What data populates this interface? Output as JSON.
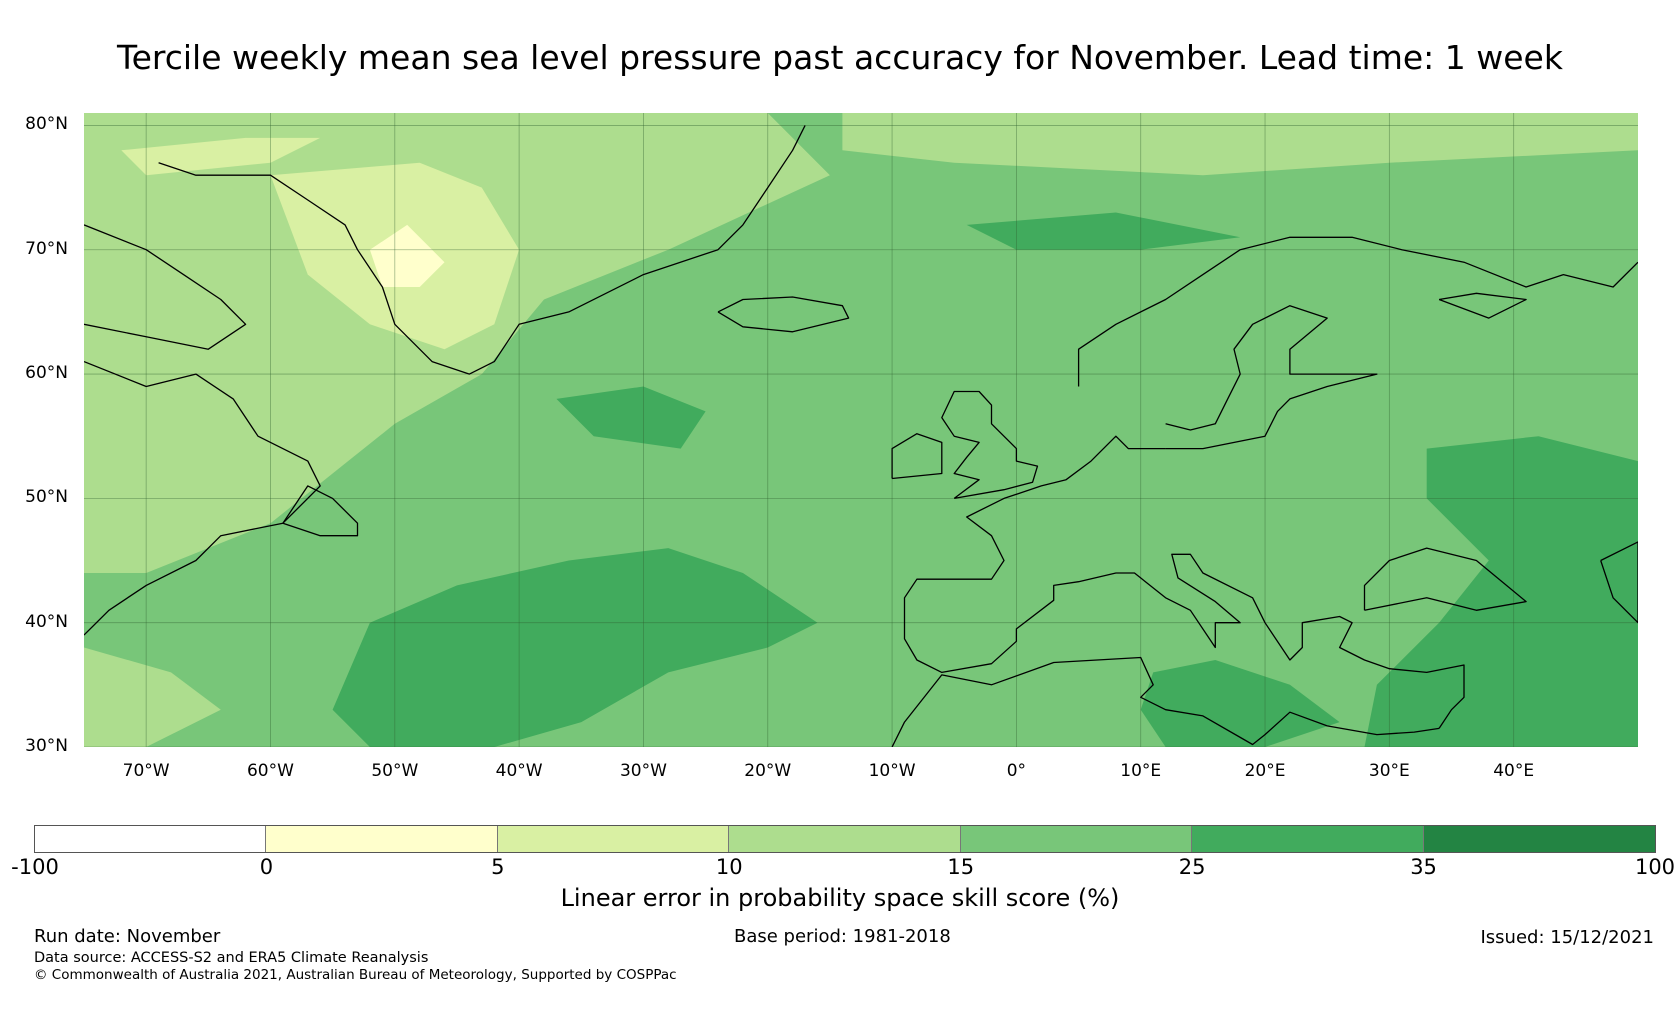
{
  "title": "Tercile weekly mean sea level pressure past accuracy for November. Lead time: 1 week",
  "map": {
    "lat_labels": [
      "80°N",
      "70°N",
      "60°N",
      "50°N",
      "40°N",
      "30°N"
    ],
    "lon_labels": [
      "70°W",
      "60°W",
      "50°W",
      "40°W",
      "30°W",
      "20°W",
      "10°W",
      "0°",
      "10°E",
      "20°E",
      "30°E",
      "40°E"
    ],
    "extent": {
      "lon_min": -75,
      "lon_max": 50,
      "lat_min": 30,
      "lat_max": 81
    },
    "colors": {
      "background": "#78c679",
      "gridline": "#2f5f2f",
      "coastline": "#000000"
    }
  },
  "colorbar": {
    "title": "Linear error in probability space skill score (%)",
    "ticks": [
      "-100",
      "0",
      "5",
      "10",
      "15",
      "25",
      "35",
      "100"
    ],
    "segments": [
      {
        "from": -100,
        "to": 0,
        "color": "#ffffff"
      },
      {
        "from": 0,
        "to": 5,
        "color": "#ffffcc"
      },
      {
        "from": 5,
        "to": 10,
        "color": "#d9f0a3"
      },
      {
        "from": 10,
        "to": 15,
        "color": "#addd8e"
      },
      {
        "from": 15,
        "to": 25,
        "color": "#78c679"
      },
      {
        "from": 25,
        "to": 35,
        "color": "#41ab5d"
      },
      {
        "from": 35,
        "to": 100,
        "color": "#238443"
      }
    ]
  },
  "footer": {
    "run_date": "Run date: November",
    "base_period": "Base period: 1981-2018",
    "issued": "Issued: 15/12/2021",
    "data_source": "Data source: ACCESS-S2 and ERA5 Climate Reanalysis",
    "copyright": "© Commonwealth of Australia 2021, Australian Bureau of Meteorology, Supported by COSPPac"
  }
}
